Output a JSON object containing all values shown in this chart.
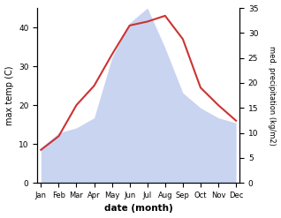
{
  "months": [
    "Jan",
    "Feb",
    "Mar",
    "Apr",
    "May",
    "Jun",
    "Jul",
    "Aug",
    "Sep",
    "Oct",
    "Nov",
    "Dec"
  ],
  "temp": [
    8.5,
    12.0,
    20.0,
    25.0,
    33.0,
    40.5,
    41.5,
    43.0,
    37.0,
    24.5,
    20.0,
    16.0
  ],
  "precip": [
    7,
    10,
    11,
    13,
    25,
    32,
    35,
    27,
    18,
    15,
    13,
    12
  ],
  "temp_ylim": [
    0,
    45
  ],
  "precip_ylim": [
    0,
    35
  ],
  "temp_yticks": [
    0,
    10,
    20,
    30,
    40
  ],
  "precip_yticks": [
    0,
    5,
    10,
    15,
    20,
    25,
    30,
    35
  ],
  "xlabel": "date (month)",
  "ylabel_left": "max temp (C)",
  "ylabel_right": "med. precipitation (kg/m2)",
  "temp_color": "#cc3333",
  "precip_color_fill": "#c8d4f0",
  "background_color": "#ffffff"
}
